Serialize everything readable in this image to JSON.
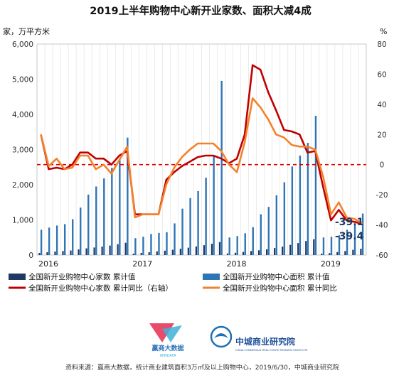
{
  "title": "2019上半年购物中心新开业家数、面积大减4成",
  "y_left_unit": "家，万平方米",
  "y_right_unit": "%",
  "footer": "资料来源：赢商大数据，统计商业建筑面积3万㎡及以上购物中心，2019/6/30，中城商业研究院",
  "logos": {
    "left_main": "赢商大数据",
    "left_sub": "WINDATA",
    "right_main": "中城商业研究院",
    "right_sub": "CHINA COMMERCIAL REAL ESTATE RESEARCH INSTITUTE"
  },
  "annotations": {
    "area_yoy_last": "-39.1",
    "count_yoy_last": "-39.4"
  },
  "colors": {
    "count_bar": "#1f3864",
    "area_bar": "#2e75b6",
    "count_yoy": "#c00000",
    "area_yoy": "#f4822a",
    "zero_line": "#e00000"
  },
  "chart_data": {
    "type": "bar",
    "year_labels": [
      "2016",
      "2017",
      "2018",
      "2019"
    ],
    "y_left_ticks": [
      "0",
      "1,000",
      "2,000",
      "3,000",
      "4,000",
      "5,000",
      "6,000"
    ],
    "y_right_ticks": [
      "-60",
      "-40",
      "-20",
      "0",
      "20",
      "40",
      "60",
      "80"
    ],
    "ylim_left": [
      0,
      6000
    ],
    "ylim_right": [
      -60,
      80
    ],
    "grid": "vertical",
    "legend_position": "bottom",
    "series": [
      {
        "name": "全国新开业购物中心家数 累计值",
        "type": "bar",
        "axis": "left",
        "values": [
          60,
          80,
          100,
          115,
          130,
          160,
          190,
          215,
          240,
          270,
          310,
          350,
          40,
          60,
          80,
          105,
          125,
          150,
          180,
          210,
          245,
          280,
          320,
          370,
          45,
          65,
          90,
          115,
          135,
          165,
          200,
          240,
          290,
          340,
          400,
          450,
          40,
          55,
          85,
          115,
          150,
          180
        ]
      },
      {
        "name": "全国新开业购物中心面积 累计值",
        "type": "bar",
        "axis": "left",
        "values": [
          720,
          780,
          840,
          880,
          1020,
          1350,
          1720,
          1950,
          2180,
          2480,
          2700,
          3340,
          480,
          520,
          600,
          630,
          650,
          900,
          1320,
          1620,
          1820,
          2200,
          2820,
          4950,
          500,
          540,
          620,
          790,
          1160,
          1370,
          1700,
          2070,
          2520,
          2830,
          3190,
          3960,
          500,
          520,
          560,
          720,
          860,
          1180
        ]
      },
      {
        "name": "全国新开业购物中心家数 累计同比（右轴）",
        "type": "line",
        "axis": "right",
        "values": [
          20,
          -3,
          -2,
          -3,
          0,
          8,
          8,
          4,
          4,
          0,
          6,
          9,
          -33,
          -33,
          -33,
          -33,
          -10,
          -5,
          -1,
          2,
          5,
          6,
          6,
          4,
          1,
          4,
          20,
          66,
          63,
          48,
          36,
          23,
          22,
          20,
          8,
          9,
          -15,
          -37,
          -30,
          -37,
          -38,
          -39.4
        ]
      },
      {
        "name": "全国新开业购物中心面积 累计同比",
        "type": "line",
        "axis": "right",
        "values": [
          20,
          -1,
          4,
          -3,
          -2,
          6,
          6,
          -3,
          0,
          -6,
          3,
          12,
          -35,
          -33,
          -33,
          -33,
          -13,
          -2,
          5,
          10,
          14,
          14,
          14,
          9,
          0,
          -5,
          15,
          44,
          38,
          30,
          20,
          18,
          13,
          12,
          12,
          10,
          -8,
          -33,
          -25,
          -35,
          -36,
          -39.1
        ]
      }
    ]
  }
}
